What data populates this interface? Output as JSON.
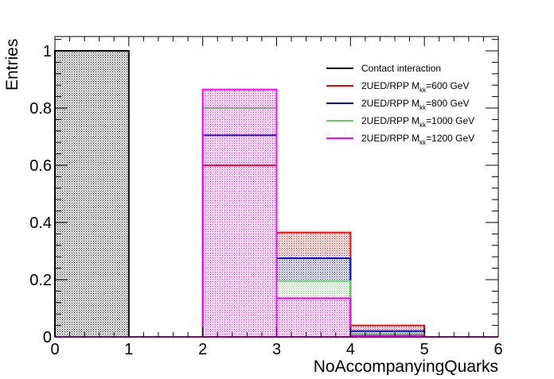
{
  "chart_data": {
    "type": "bar",
    "title": "",
    "xlabel": "NoAccompanyingQuarks",
    "ylabel": "Entries",
    "xlim": [
      0,
      6
    ],
    "ylim": [
      0,
      1.05
    ],
    "x_ticks": [
      "0",
      "1",
      "2",
      "3",
      "4",
      "5",
      "6"
    ],
    "y_ticks": [
      "0",
      "0.2",
      "0.4",
      "0.6",
      "0.8",
      "1"
    ],
    "bin_edges": [
      0,
      1,
      2,
      3,
      4,
      5,
      6
    ],
    "grid": false,
    "legend_position": "top-right",
    "series": [
      {
        "name": "Contact interaction",
        "legend_prefix": "Contact interaction",
        "legend_sub": "",
        "legend_suffix": "",
        "color": "#000000",
        "values": [
          1.0,
          0,
          0,
          0,
          0,
          0
        ]
      },
      {
        "name": "2UED/RPP Mkk=600 GeV",
        "legend_prefix": "2UED/RPP M",
        "legend_sub": "kk",
        "legend_suffix": "=600 GeV",
        "color": "#ff0000",
        "values": [
          0,
          0,
          0.6,
          0.365,
          0.04,
          0
        ]
      },
      {
        "name": "2UED/RPP Mkk=800 GeV",
        "legend_prefix": "2UED/RPP M",
        "legend_sub": "kk",
        "legend_suffix": "=800 GeV",
        "color": "#0000cc",
        "values": [
          0,
          0,
          0.705,
          0.275,
          0.02,
          0
        ]
      },
      {
        "name": "2UED/RPP Mkk=1000 GeV",
        "legend_prefix": "2UED/RPP M",
        "legend_sub": "kk",
        "legend_suffix": "=1000 GeV",
        "color": "#66cc66",
        "values": [
          0,
          0,
          0.8,
          0.195,
          0.01,
          0
        ]
      },
      {
        "name": "2UED/RPP Mkk=1200 GeV",
        "legend_prefix": "2UED/RPP M",
        "legend_sub": "kk",
        "legend_suffix": "=1200 GeV",
        "color": "#ff00ff",
        "values": [
          0,
          0,
          0.865,
          0.135,
          0.005,
          0
        ]
      }
    ]
  }
}
